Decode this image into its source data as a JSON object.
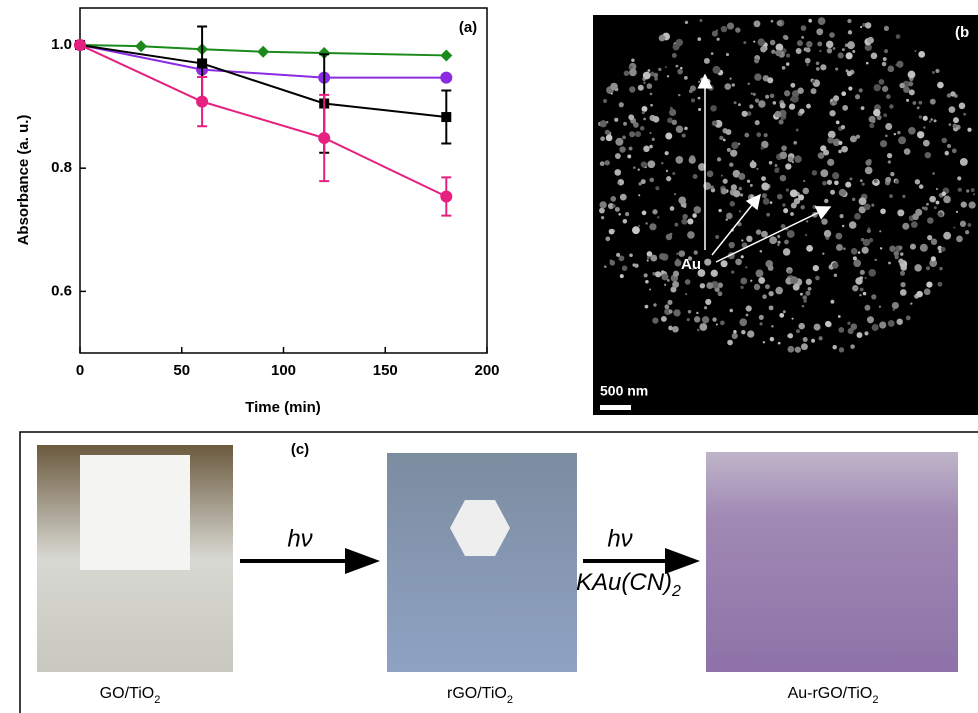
{
  "chart_data": {
    "type": "line",
    "panel_label": "(a)",
    "x_label": "Time (min)",
    "y_label": "Absorbance (a. u.)",
    "xlim": [
      0,
      200
    ],
    "xticks": [
      0,
      50,
      100,
      150,
      200
    ],
    "ylim": [
      0.5,
      1.06
    ],
    "yticks": [
      0.6,
      0.8,
      {
        "value": 1,
        "label": "1.0"
      }
    ],
    "series": [
      {
        "color": "#1a8a1a",
        "marker": "diamond",
        "x": [
          0,
          30,
          60,
          90,
          120,
          180
        ],
        "values": [
          1.0,
          0.998,
          0.993,
          0.989,
          0.987,
          0.983
        ]
      },
      {
        "color": "#8a2be2",
        "marker": "circle",
        "x": [
          0,
          60,
          120,
          180
        ],
        "values": [
          1.0,
          0.96,
          0.947,
          0.947
        ]
      },
      {
        "color": "#000000",
        "marker": "square",
        "x": [
          0,
          60,
          120,
          180
        ],
        "values": [
          1.0,
          0.97,
          0.905,
          0.883
        ],
        "errors": [
          0,
          0.06,
          0.08,
          0.043
        ]
      },
      {
        "color": "#e6207f",
        "marker": "circle",
        "x": [
          0,
          60,
          120,
          180
        ],
        "values": [
          1.0,
          0.908,
          0.849,
          0.754
        ],
        "errors": [
          0,
          0.04,
          0.07,
          0.031
        ]
      }
    ]
  },
  "panel_b": {
    "label": "(b",
    "annotation": "Au",
    "scale_bar": "500 nm"
  },
  "panel_c": {
    "label": "(c)",
    "arrow1": "hν",
    "arrow2_top": "hν",
    "arrow2_bottom": {
      "text": "KAu(CN)",
      "sub": "2"
    },
    "samples": [
      {
        "text": "GO/TiO",
        "sub": "2"
      },
      {
        "text": "rGO/TiO",
        "sub": "2"
      },
      {
        "text": "Au-rGO/TiO",
        "sub": "2"
      }
    ]
  }
}
